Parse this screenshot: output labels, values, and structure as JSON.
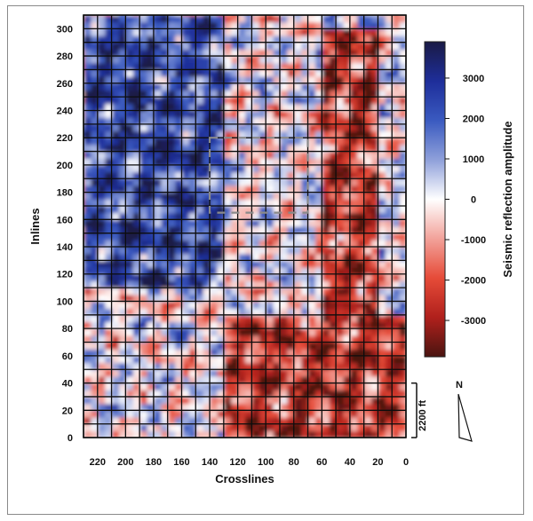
{
  "chart_data": {
    "type": "heatmap",
    "title": "",
    "xlabel": "Crosslines",
    "ylabel": "Inlines",
    "xlim": [
      230,
      0
    ],
    "ylim": [
      0,
      310
    ],
    "x_ticks": [
      "220",
      "200",
      "180",
      "160",
      "140",
      "120",
      "100",
      "80",
      "60",
      "40",
      "20",
      "0"
    ],
    "y_ticks": [
      "0",
      "20",
      "40",
      "60",
      "80",
      "100",
      "120",
      "140",
      "160",
      "180",
      "200",
      "220",
      "240",
      "260",
      "280",
      "300"
    ],
    "grid": true,
    "colorbar": {
      "label": "Seismic reflection amplitude",
      "ticks": [
        "3000",
        "2000",
        "1000",
        "0",
        "-1000",
        "-2000",
        "-3000"
      ],
      "range": [
        -3900,
        3900
      ],
      "colors": [
        "#1a1a45",
        "#1e2e9a",
        "#3a5ac0",
        "#8fa0da",
        "#ffffff",
        "#f2a29a",
        "#e64b38",
        "#b0201c",
        "#4a1410"
      ]
    },
    "dominant_regions": [
      {
        "amplitude": "positive",
        "color": "#e23c2c",
        "crosslines": [
          230,
          130
        ],
        "inlines": [
          110,
          310
        ]
      },
      {
        "amplitude": "negative",
        "color": "#1f2e9c",
        "crosslines": [
          130,
          0
        ],
        "inlines": [
          0,
          90
        ]
      },
      {
        "amplitude": "negative",
        "color": "#1f2e9c",
        "crosslines": [
          60,
          20
        ],
        "inlines": [
          90,
          300
        ]
      }
    ],
    "annotation_box": {
      "crosslines": [
        140,
        70
      ],
      "inlines": [
        165,
        220
      ],
      "style": "dashed"
    },
    "scale_bar": {
      "label": "2200 ft",
      "inlines": [
        0,
        40
      ]
    },
    "north_arrow": {
      "label": "N"
    }
  }
}
